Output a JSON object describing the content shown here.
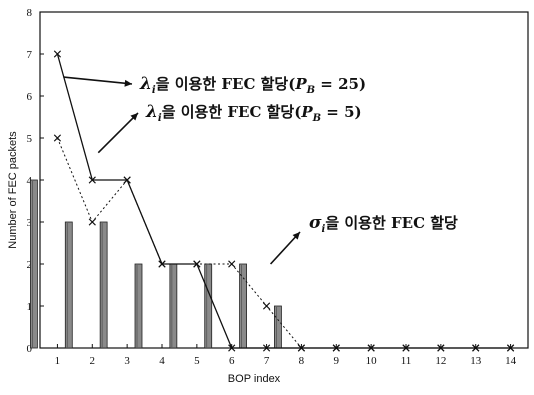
{
  "chart_data": {
    "type": "bar",
    "xlabel": "BOP index",
    "ylabel": "Number of FEC packets",
    "ylim": [
      0,
      8
    ],
    "y_ticks": [
      "0",
      "1",
      "2",
      "3",
      "4",
      "5",
      "6",
      "7",
      "8"
    ],
    "categories": [
      "1",
      "2",
      "3",
      "4",
      "5",
      "6",
      "7",
      "8",
      "9",
      "10",
      "11",
      "12",
      "13",
      "14"
    ],
    "grid": false,
    "series": [
      {
        "kind": "bars",
        "values": [
          4,
          3,
          3,
          2,
          2,
          2,
          2,
          1,
          0,
          0,
          0,
          0,
          0,
          0
        ],
        "color": "#8a8a8a"
      },
      {
        "kind": "line",
        "style": "solid",
        "values": [
          7,
          4,
          4,
          2,
          2,
          0,
          0,
          0,
          0,
          0,
          0,
          0,
          0,
          0
        ],
        "color": "#111111"
      },
      {
        "kind": "line",
        "style": "dotted",
        "values": [
          5,
          3,
          4,
          2,
          2,
          2,
          1,
          0,
          0,
          0,
          0,
          0,
          0,
          0
        ],
        "color": "#111111"
      }
    ],
    "annotations": [
      {
        "sym": "λ",
        "sub": "i",
        "text": "을 이용한 FEC 할당(",
        "p": "P",
        "psub": "B",
        "tail": " = 25)"
      },
      {
        "sym": "λ",
        "sub": "i",
        "text": "을 이용한 FEC 할당(",
        "p": "P",
        "psub": "B",
        "tail": " = 5)"
      },
      {
        "sym": "σ",
        "sub": "i",
        "text": "을 이용한 FEC 할당",
        "p": "",
        "psub": "",
        "tail": ""
      }
    ]
  }
}
